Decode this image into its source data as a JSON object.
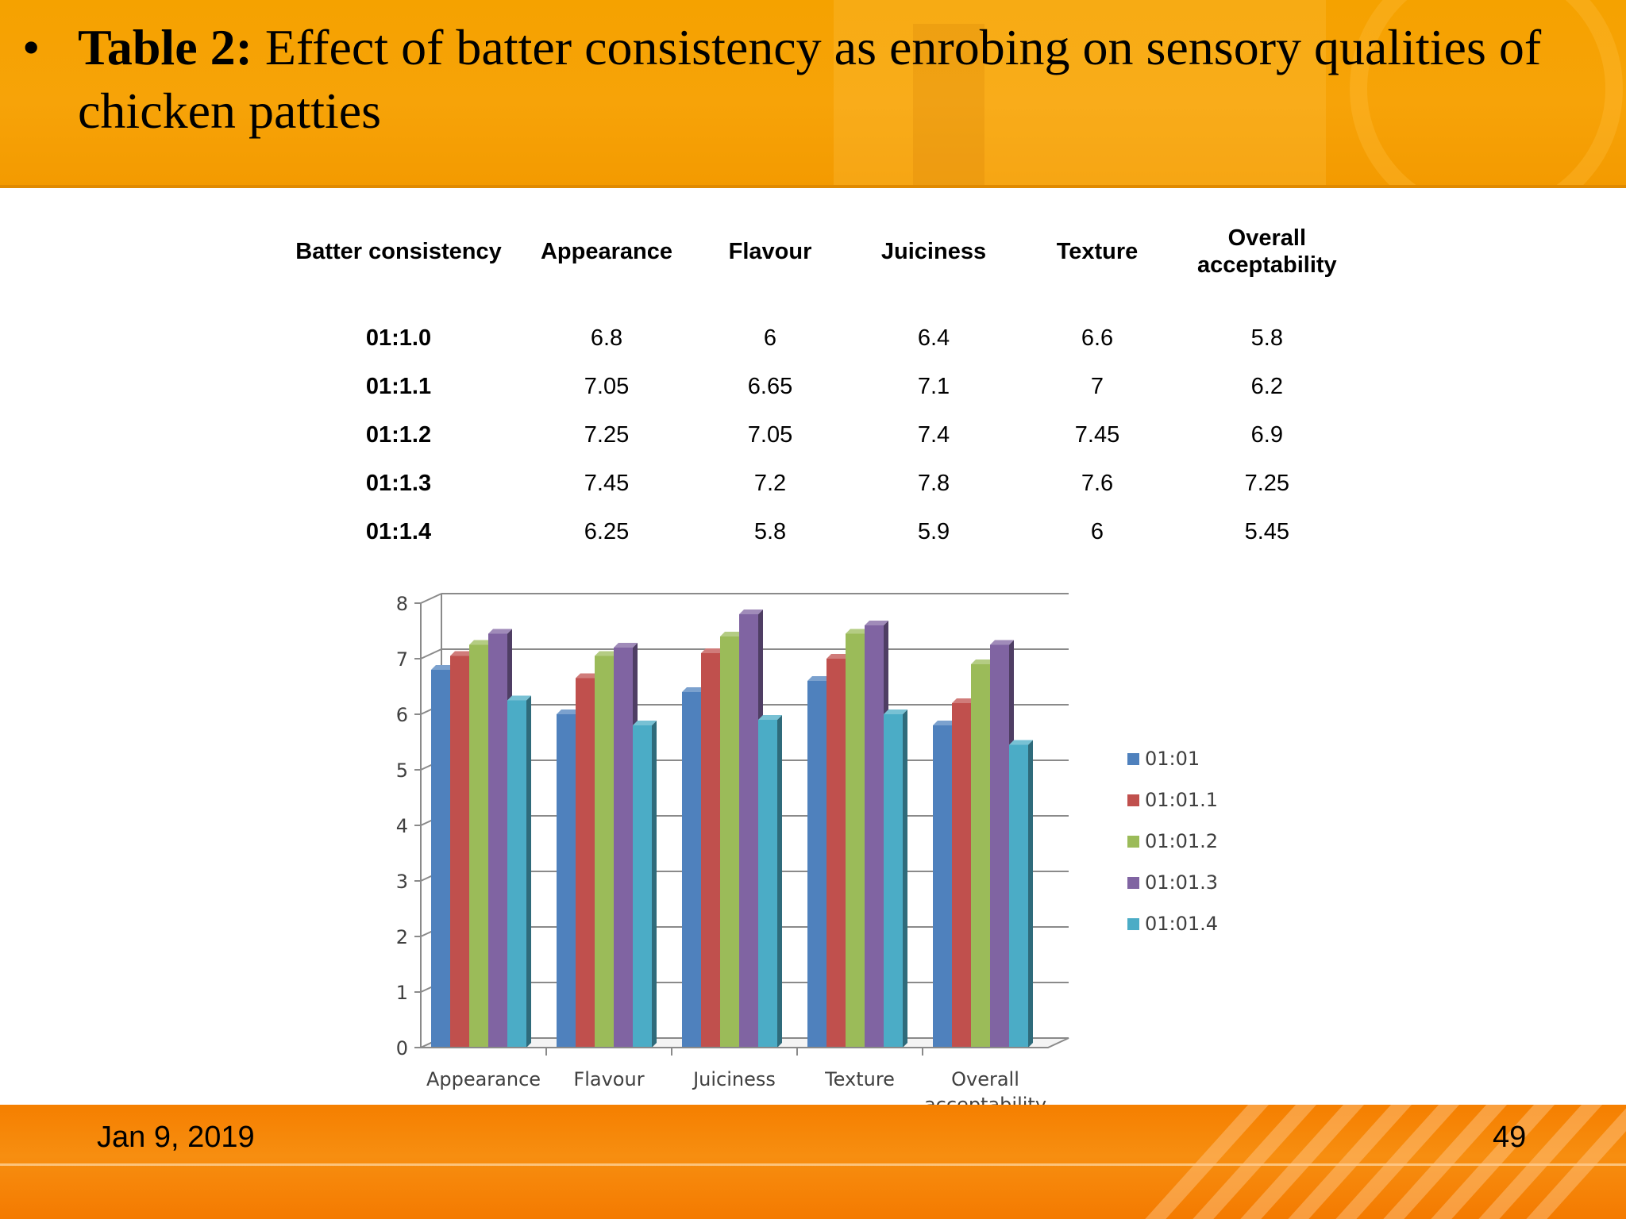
{
  "title": {
    "bullet": "•",
    "label": "Table 2:",
    "text": " Effect of batter consistency as enrobing on sensory qualities of chicken patties"
  },
  "table": {
    "headers": [
      "Batter consistency",
      "Appearance",
      "Flavour",
      "Juiciness",
      "Texture",
      "Overall acceptability"
    ],
    "rows": [
      [
        "01:1.0",
        "6.8",
        "6",
        "6.4",
        "6.6",
        "5.8"
      ],
      [
        "01:1.1",
        "7.05",
        "6.65",
        "7.1",
        "7",
        "6.2"
      ],
      [
        "01:1.2",
        "7.25",
        "7.05",
        "7.4",
        "7.45",
        "6.9"
      ],
      [
        "01:1.3",
        "7.45",
        "7.2",
        "7.8",
        "7.6",
        "7.25"
      ],
      [
        "01:1.4",
        "6.25",
        "5.8",
        "5.9",
        "6",
        "5.45"
      ]
    ]
  },
  "chart_data": {
    "type": "bar",
    "title": "",
    "xlabel": "",
    "ylabel": "",
    "categories": [
      "Appearance",
      "Flavour",
      "Juiciness",
      "Texture",
      "Overall acceptability"
    ],
    "category_lines": [
      [
        "Appearance"
      ],
      [
        "Flavour"
      ],
      [
        "Juiciness"
      ],
      [
        "Texture"
      ],
      [
        "Overall",
        "acceptability"
      ]
    ],
    "ylim": [
      0,
      8
    ],
    "yticks": [
      0,
      1,
      2,
      3,
      4,
      5,
      6,
      7,
      8
    ],
    "grid": true,
    "legend": "right",
    "series": [
      {
        "name": "01:01",
        "color": "#4f81bd",
        "values": [
          6.8,
          6,
          6.4,
          6.6,
          5.8
        ]
      },
      {
        "name": "01:01.1",
        "color": "#c0504d",
        "values": [
          7.05,
          6.65,
          7.1,
          7,
          6.2
        ]
      },
      {
        "name": "01:01.2",
        "color": "#9bbb59",
        "values": [
          7.25,
          7.05,
          7.4,
          7.45,
          6.9
        ]
      },
      {
        "name": "01:01.3",
        "color": "#8064a2",
        "values": [
          7.45,
          7.2,
          7.8,
          7.6,
          7.25
        ]
      },
      {
        "name": "01:01.4",
        "color": "#4bacc6",
        "values": [
          6.25,
          5.8,
          5.9,
          6,
          5.45
        ]
      }
    ]
  },
  "footer": {
    "date": "Jan 9, 2019",
    "page_number": "49"
  }
}
